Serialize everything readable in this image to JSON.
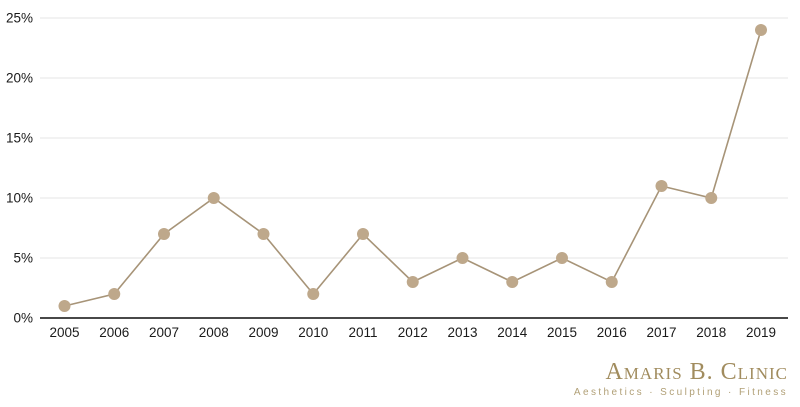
{
  "chart_data": {
    "type": "line",
    "x": [
      "2005",
      "2006",
      "2007",
      "2008",
      "2009",
      "2010",
      "2011",
      "2012",
      "2013",
      "2014",
      "2015",
      "2016",
      "2017",
      "2018",
      "2019"
    ],
    "values": [
      1,
      2,
      7,
      10,
      7,
      2,
      7,
      3,
      5,
      3,
      5,
      3,
      11,
      10,
      24
    ],
    "unit": "%",
    "title": "",
    "xlabel": "",
    "ylabel": "",
    "ylim": [
      0,
      25
    ],
    "yticks": [
      0,
      5,
      10,
      15,
      20,
      25
    ],
    "ytick_labels": [
      "0%",
      "5%",
      "10%",
      "15%",
      "20%",
      "25%"
    ],
    "grid": "horizontal",
    "legend": "none",
    "line_color": "#a79478",
    "marker_color": "#bea88b",
    "grid_color": "#e4e4e4",
    "axis_color": "#2e2e2e",
    "label_color": "#1a1a1a"
  },
  "brand": {
    "name": "Amaris B. Clinic",
    "tagline": "Aesthetics · Sculpting · Fitness",
    "color": "#a18c5e",
    "tagline_color": "#b1a077"
  }
}
